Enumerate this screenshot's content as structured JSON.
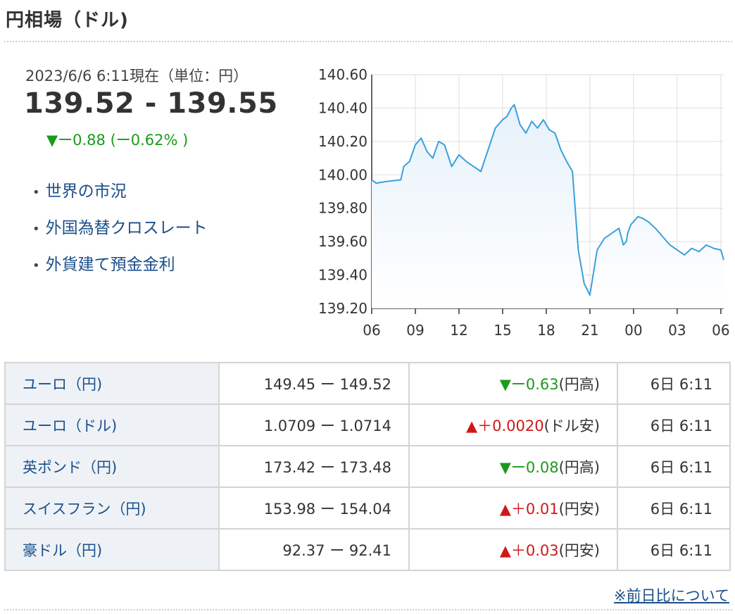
{
  "header": {
    "title": "円相場（ドル)"
  },
  "summary": {
    "timestamp": "2023/6/6 6:11現在（単位：円）",
    "price": "139.52 - 139.55",
    "change": "▼ー0.88 (ー0.62% )"
  },
  "links": [
    {
      "label": "世界の市況"
    },
    {
      "label": "外国為替クロスレート"
    },
    {
      "label": "外貨建て預金金利"
    }
  ],
  "colors": {
    "line": "#3aa0dc",
    "fill_top": "#e6f1fa",
    "down": "#1a9a1a",
    "up": "#d01818",
    "link": "#1b4f8a"
  },
  "chart_data": {
    "type": "area",
    "y_ticks": [
      "140.60",
      "140.40",
      "140.20",
      "140.00",
      "139.80",
      "139.60",
      "139.40",
      "139.20"
    ],
    "ylim": [
      139.2,
      140.6
    ],
    "x_ticks": [
      "06",
      "09",
      "12",
      "15",
      "18",
      "21",
      "00",
      "03",
      "06"
    ],
    "x_hours": [
      0,
      24.2
    ],
    "grid": true,
    "series": [
      {
        "x": [
          0,
          0.3,
          1.0,
          2.0,
          2.2,
          2.6,
          3.0,
          3.4,
          3.8,
          4.2,
          4.6,
          5.0,
          5.5,
          6.0,
          6.5,
          7.0,
          7.5,
          8.0,
          8.5,
          9.0,
          9.3,
          9.6,
          9.8,
          10.2,
          10.6,
          11.0,
          11.4,
          11.8,
          12.2,
          12.6,
          13.0,
          13.4,
          13.8,
          14.2,
          14.6,
          15.0,
          15.5,
          16.0,
          16.5,
          17.0,
          17.3,
          17.5,
          17.6,
          17.8,
          18.0,
          18.3,
          18.6,
          19.0,
          19.5,
          20.0,
          20.5,
          21.0,
          21.5,
          22.0,
          22.5,
          23.0,
          23.5,
          24.0,
          24.2
        ],
        "y": [
          139.97,
          139.95,
          139.96,
          139.97,
          140.05,
          140.08,
          140.18,
          140.22,
          140.14,
          140.1,
          140.2,
          140.18,
          140.05,
          140.12,
          140.08,
          140.05,
          140.02,
          140.15,
          140.28,
          140.33,
          140.35,
          140.4,
          140.42,
          140.3,
          140.25,
          140.32,
          140.28,
          140.33,
          140.27,
          140.25,
          140.15,
          140.08,
          140.02,
          139.55,
          139.35,
          139.28,
          139.55,
          139.62,
          139.65,
          139.68,
          139.58,
          139.6,
          139.65,
          139.7,
          139.72,
          139.75,
          139.74,
          139.72,
          139.68,
          139.63,
          139.58,
          139.55,
          139.52,
          139.56,
          139.54,
          139.58,
          139.56,
          139.55,
          139.49
        ]
      }
    ]
  },
  "table": {
    "rows": [
      {
        "name": "ユーロ（円)",
        "rate": "149.45 ー 149.52",
        "dir": "down",
        "mark": "▼",
        "change": "ー0.63",
        "note": "(円高)",
        "time": "6日 6:11"
      },
      {
        "name": "ユーロ（ドル)",
        "rate": "1.0709 ー 1.0714",
        "dir": "up",
        "mark": "▲",
        "change": "＋0.0020",
        "note": "(ドル安)",
        "time": "6日 6:11"
      },
      {
        "name": "英ポンド（円)",
        "rate": "173.42 ー 173.48",
        "dir": "down",
        "mark": "▼",
        "change": "ー0.08",
        "note": "(円高)",
        "time": "6日 6:11"
      },
      {
        "name": "スイスフラン（円)",
        "rate": "153.98 ー 154.04",
        "dir": "up",
        "mark": "▲",
        "change": "＋0.01",
        "note": "(円安)",
        "time": "6日 6:11"
      },
      {
        "name": "豪ドル（円)",
        "rate": "92.37 ー 92.41",
        "dir": "up",
        "mark": "▲",
        "change": "＋0.03",
        "note": "(円安)",
        "time": "6日 6:11"
      }
    ]
  },
  "footer": {
    "note_link": "※前日比について"
  }
}
